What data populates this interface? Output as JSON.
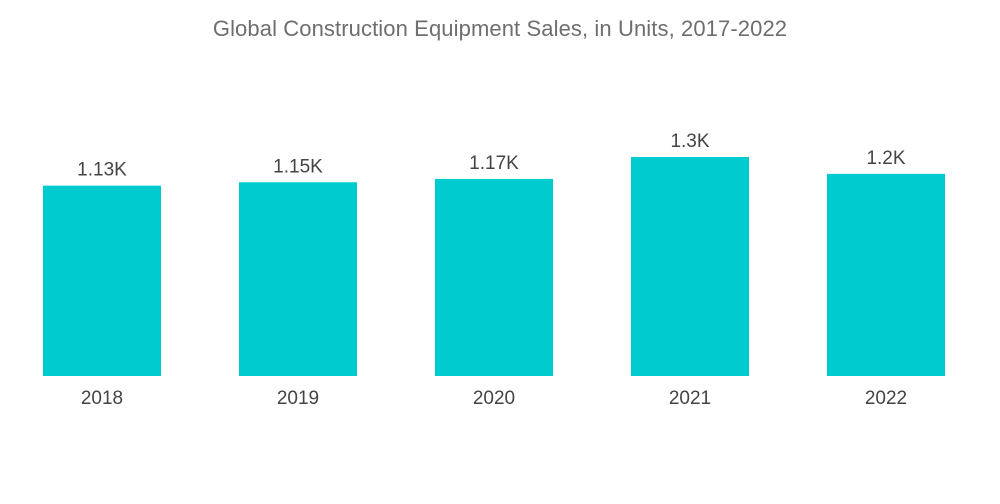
{
  "chart_data": {
    "type": "bar",
    "title": "Global Construction Equipment Sales, in Units, 2017-2022",
    "categories": [
      "2018",
      "2019",
      "2020",
      "2021",
      "2022"
    ],
    "values": [
      1.13,
      1.15,
      1.17,
      1.3,
      1.2
    ],
    "value_labels": [
      "1.13K",
      "1.15K",
      "1.17K",
      "1.3K",
      "1.2K"
    ],
    "xlabel": "",
    "ylabel": "",
    "ylim": [
      0,
      1.3
    ],
    "grid": false,
    "legend": "none",
    "colors": {
      "bar": "#00CCCF"
    }
  }
}
